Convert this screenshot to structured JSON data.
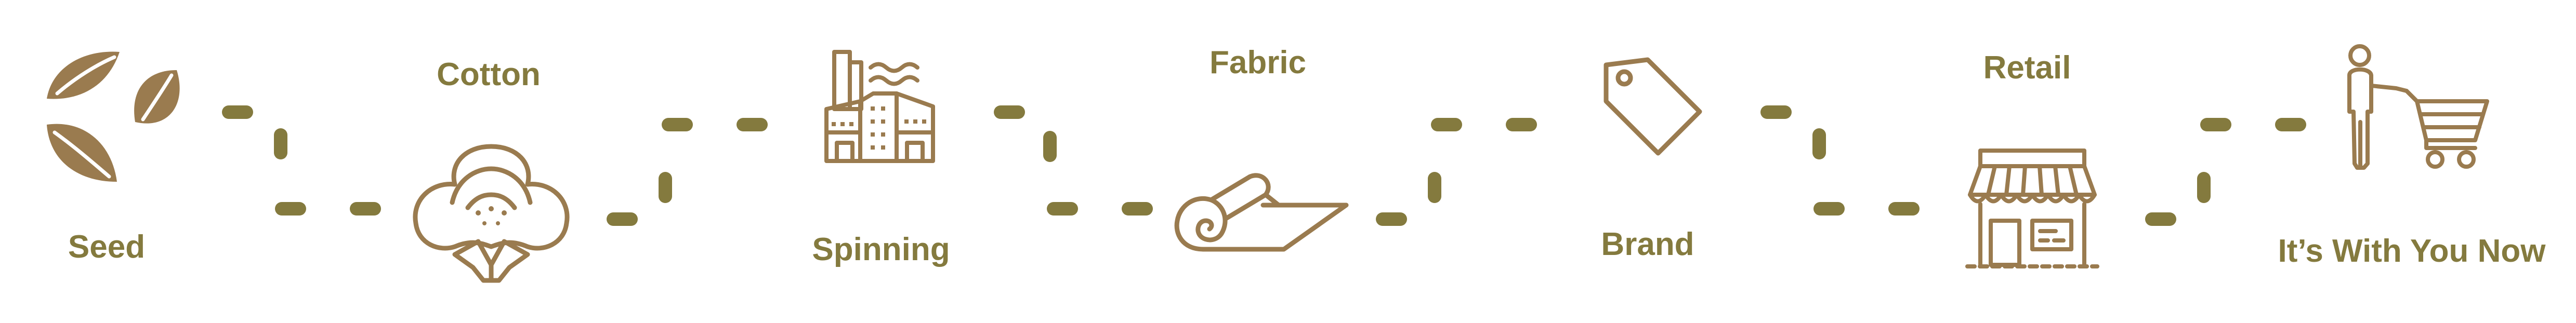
{
  "colors": {
    "brown": "#9a7b4f",
    "olive": "#847a3e",
    "background": "#ffffff"
  },
  "steps": [
    {
      "label": "Seed",
      "icon": "seeds-icon"
    },
    {
      "label": "Cotton",
      "icon": "cotton-boll-icon"
    },
    {
      "label": "Spinning",
      "icon": "factory-icon"
    },
    {
      "label": "Fabric",
      "icon": "fabric-roll-icon"
    },
    {
      "label": "Brand",
      "icon": "price-tag-icon"
    },
    {
      "label": "Retail",
      "icon": "storefront-icon"
    },
    {
      "label": "It’s With You Now",
      "icon": "shopper-cart-icon"
    }
  ]
}
